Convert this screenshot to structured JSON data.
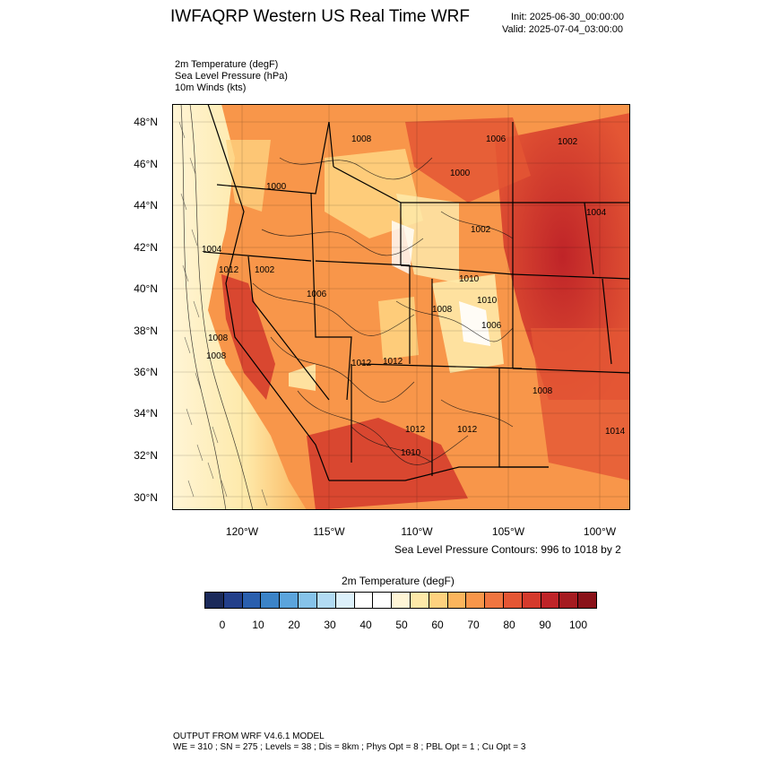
{
  "header": {
    "title": "IWFAQRP Western US Real Time WRF",
    "init": "Init: 2025-06-30_00:00:00",
    "valid": "Valid: 2025-07-04_03:00:00"
  },
  "fields": [
    "2m Temperature   (degF)",
    "Sea Level Pressure   (hPa)",
    "10m Winds   (kts)"
  ],
  "lat_labels": [
    "48°N",
    "46°N",
    "44°N",
    "42°N",
    "40°N",
    "38°N",
    "36°N",
    "34°N",
    "32°N",
    "30°N"
  ],
  "lon_labels": [
    "120°W",
    "115°W",
    "110°W",
    "105°W",
    "100°W"
  ],
  "contour_note": "Sea Level Pressure Contours: 996 to 1018 by 2",
  "isobar_labels": [
    "1008",
    "1006",
    "1002",
    "1000",
    "1000",
    "1004",
    "1002",
    "1004",
    "1012",
    "1002",
    "1006",
    "1010",
    "1008",
    "1010",
    "1008",
    "1008",
    "1012",
    "1012",
    "1008",
    "1012",
    "1012",
    "1014",
    "1006",
    "1010"
  ],
  "colorbar": {
    "title": "2m Temperature  (degF)",
    "labels": [
      "0",
      "10",
      "20",
      "30",
      "40",
      "50",
      "60",
      "70",
      "80",
      "90",
      "100"
    ],
    "colors": [
      "#1b2a5a",
      "#233f8a",
      "#2a5fae",
      "#3b83c7",
      "#5ba4dc",
      "#86c3ea",
      "#b2dbf3",
      "#dcf0fa",
      "#ffffff",
      "#ffffff",
      "#fff5d6",
      "#fee9a9",
      "#fed27f",
      "#fbb55d",
      "#f8964a",
      "#f07540",
      "#e45634",
      "#d43a2c",
      "#bf2428",
      "#a51b20",
      "#8a1219"
    ]
  },
  "footer": {
    "line1": "OUTPUT FROM WRF V4.6.1 MODEL",
    "line2": "WE = 310 ; SN = 275 ; Levels = 38 ; Dis = 8km ; Phys Opt = 8 ; PBL Opt = 1 ; Cu Opt = 3"
  }
}
